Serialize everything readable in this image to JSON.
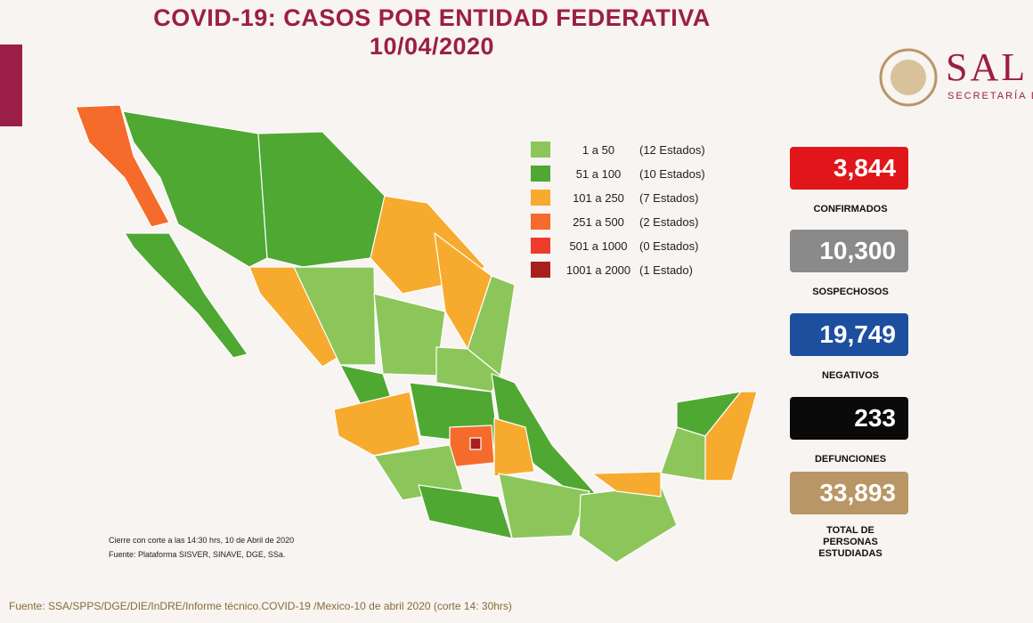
{
  "header": {
    "title": "COVID-19: CASOS POR ENTIDAD FEDERATIVA",
    "date": "10/04/2020"
  },
  "logo": {
    "name": "SAL",
    "subtitle": "SECRETARÍA DE"
  },
  "legend": [
    {
      "range": "1 a 50",
      "count": "(12 Estados)",
      "color": "#8cc65a"
    },
    {
      "range": "51 a 100",
      "count": "(10 Estados)",
      "color": "#4fa832"
    },
    {
      "range": "101 a 250",
      "count": "(7 Estados)",
      "color": "#f7ab2e"
    },
    {
      "range": "251 a 500",
      "count": "(2 Estados)",
      "color": "#f56b2c"
    },
    {
      "range": "501 a 1000",
      "count": "(0 Estados)",
      "color": "#ef3b2c"
    },
    {
      "range": "1001 a 2000",
      "count": "(1 Estado)",
      "color": "#a8201e"
    }
  ],
  "stats": [
    {
      "value": "3,844",
      "label": "CONFIRMADOS",
      "color": "#e0161b"
    },
    {
      "value": "10,300",
      "label": "SOSPECHOSOS",
      "color": "#8a8a8a"
    },
    {
      "value": "19,749",
      "label": "NEGATIVOS",
      "color": "#1d4f9f"
    },
    {
      "value": "233",
      "label": "DEFUNCIONES",
      "color": "#0a0a0a"
    },
    {
      "value": "33,893",
      "label": "TOTAL DE PERSONAS ESTUDIADAS",
      "color": "#b99666"
    }
  ],
  "notes": [
    "Cierre con corte a las 14:30 hrs, 10 de Abril de 2020",
    "Fuente: Plataforma SISVER, SINAVE, DGE, SSa."
  ],
  "footer": "Fuente: SSA/SPPS/DGE/DIE/InDRE/Informe técnico.COVID-19 /Mexico-10 de abril 2020 (corte 14: 30hrs)"
}
